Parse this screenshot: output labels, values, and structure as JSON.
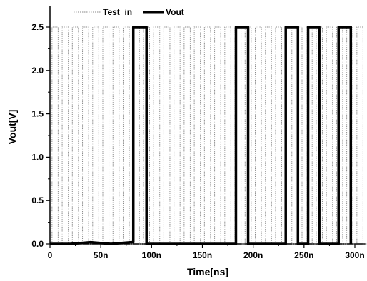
{
  "chart_data": {
    "type": "line",
    "xlabel": "Time[ns]",
    "ylabel": "Vout[V]",
    "xlim": [
      0,
      320
    ],
    "ylim": [
      0,
      2.7
    ],
    "x_ticks": [
      0,
      50,
      100,
      150,
      200,
      250,
      300
    ],
    "x_tick_labels": [
      "0",
      "50n",
      "100n",
      "150n",
      "200n",
      "250n",
      "300n"
    ],
    "y_ticks": [
      0.0,
      0.5,
      1.0,
      1.5,
      2.0,
      2.5
    ],
    "y_tick_labels": [
      "0.0",
      "0.5",
      "1.0",
      "1.5",
      "2.0",
      "2.5"
    ],
    "grid": false,
    "legend_position": "top-left",
    "series": [
      {
        "name": "Test_in",
        "style": "dotted",
        "color": "#888888",
        "high": 2.5,
        "low": 0.0,
        "pulses": [
          [
            2,
            8
          ],
          [
            12,
            18
          ],
          [
            22,
            28
          ],
          [
            32,
            38
          ],
          [
            42,
            48
          ],
          [
            52,
            58
          ],
          [
            62,
            68
          ],
          [
            72,
            78
          ],
          [
            82,
            88
          ],
          [
            92,
            98
          ],
          [
            102,
            108
          ],
          [
            112,
            118
          ],
          [
            122,
            128
          ],
          [
            132,
            138
          ],
          [
            142,
            148
          ],
          [
            152,
            158
          ],
          [
            162,
            168
          ],
          [
            172,
            178
          ],
          [
            182,
            188
          ],
          [
            192,
            198
          ],
          [
            202,
            208
          ],
          [
            212,
            218
          ],
          [
            222,
            228
          ],
          [
            232,
            238
          ],
          [
            242,
            248
          ],
          [
            252,
            258
          ],
          [
            262,
            268
          ],
          [
            272,
            278
          ],
          [
            282,
            288
          ],
          [
            292,
            298
          ],
          [
            302,
            308
          ]
        ]
      },
      {
        "name": "Vout",
        "style": "solid",
        "color": "#000000",
        "points": [
          [
            0,
            0.0
          ],
          [
            20,
            0.0
          ],
          [
            40,
            0.02
          ],
          [
            60,
            0.0
          ],
          [
            80,
            0.02
          ],
          [
            82,
            0.02
          ],
          [
            82,
            2.5
          ],
          [
            95,
            2.5
          ],
          [
            95,
            0.0
          ],
          [
            183,
            0.0
          ],
          [
            183,
            2.5
          ],
          [
            195,
            2.5
          ],
          [
            195,
            0.0
          ],
          [
            232,
            0.0
          ],
          [
            232,
            2.5
          ],
          [
            244,
            2.5
          ],
          [
            244,
            0.0
          ],
          [
            254,
            0.0
          ],
          [
            254,
            2.5
          ],
          [
            265,
            2.5
          ],
          [
            265,
            0.0
          ],
          [
            284,
            0.0
          ],
          [
            284,
            2.5
          ],
          [
            296,
            2.5
          ],
          [
            296,
            0.0
          ]
        ]
      }
    ]
  }
}
